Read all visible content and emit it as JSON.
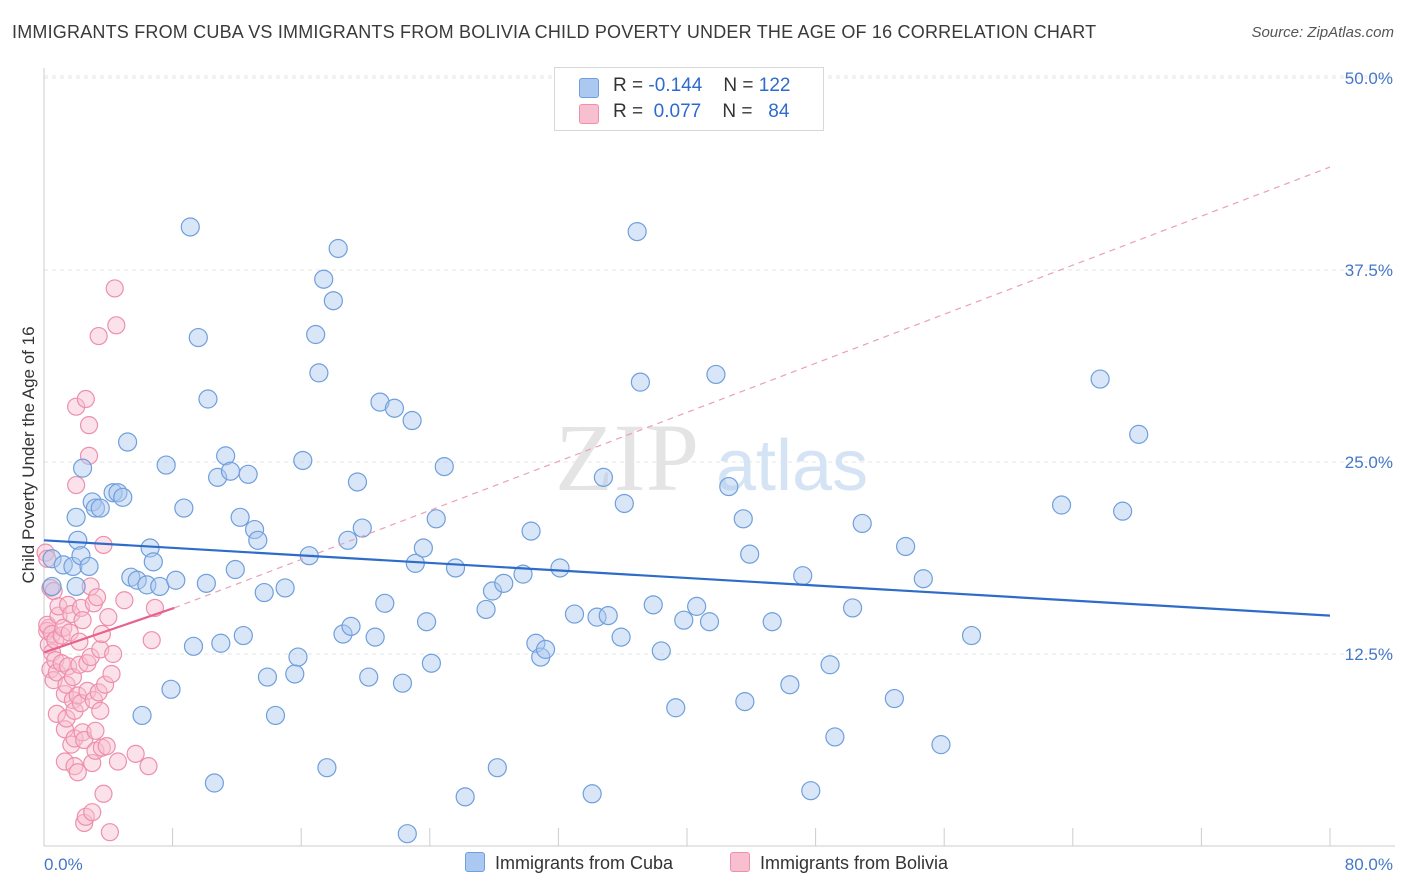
{
  "title": "IMMIGRANTS FROM CUBA VS IMMIGRANTS FROM BOLIVIA CHILD POVERTY UNDER THE AGE OF 16 CORRELATION CHART",
  "source": "Source: ZipAtlas.com",
  "watermark": {
    "zip": "ZIP",
    "atlas": "atlas"
  },
  "legend": {
    "cuba": {
      "r_label": "R =",
      "r_value": "-0.144",
      "n_label": "N =",
      "n_value": "122"
    },
    "bolivia": {
      "r_label": "R =",
      "r_value": "0.077",
      "n_label": "N =",
      "n_value": "84"
    }
  },
  "bottom_legend": {
    "cuba": "Immigrants from Cuba",
    "bolivia": "Immigrants from Bolivia"
  },
  "colors": {
    "cuba_fill": "#aac8f0",
    "cuba_stroke": "#6f9fdc",
    "cuba_line": "#2d6cc8",
    "bolivia_fill": "#f7bfd0",
    "bolivia_stroke": "#ee8fac",
    "bolivia_line": "#e8628c",
    "tick": "#4477c6"
  },
  "chart_data": {
    "type": "scatter",
    "title": "IMMIGRANTS FROM CUBA VS IMMIGRANTS FROM BOLIVIA CHILD POVERTY UNDER THE AGE OF 16 CORRELATION CHART",
    "xlabel": "",
    "ylabel": "Child Poverty Under the Age of 16",
    "xlim": [
      0,
      80
    ],
    "ylim": [
      0,
      50
    ],
    "x_tick_labels": [
      "0.0%",
      "80.0%"
    ],
    "y_ticks": [
      12.5,
      25.0,
      37.5,
      50.0
    ],
    "y_tick_labels": [
      "12.5%",
      "25.0%",
      "37.5%",
      "50.0%"
    ],
    "grid": true,
    "legend_position": "top-center",
    "series": [
      {
        "name": "Immigrants from Cuba",
        "r": -0.144,
        "n": 122,
        "trend": {
          "x": [
            0,
            80
          ],
          "y": [
            19.9,
            15.0
          ]
        },
        "points": [
          [
            0.5,
            18.7
          ],
          [
            0.5,
            16.9
          ],
          [
            1.2,
            18.3
          ],
          [
            1.8,
            18.2
          ],
          [
            2.1,
            19.9
          ],
          [
            2.0,
            16.9
          ],
          [
            2.3,
            18.9
          ],
          [
            2.0,
            21.4
          ],
          [
            2.4,
            24.6
          ],
          [
            2.8,
            18.2
          ],
          [
            3.0,
            22.4
          ],
          [
            3.2,
            22.0
          ],
          [
            3.5,
            22.0
          ],
          [
            4.3,
            23.0
          ],
          [
            4.6,
            23.0
          ],
          [
            4.9,
            22.7
          ],
          [
            5.2,
            26.3
          ],
          [
            5.4,
            17.5
          ],
          [
            5.8,
            17.3
          ],
          [
            6.1,
            8.5
          ],
          [
            6.4,
            17.0
          ],
          [
            6.6,
            19.4
          ],
          [
            6.8,
            18.5
          ],
          [
            7.2,
            16.9
          ],
          [
            7.6,
            24.8
          ],
          [
            7.9,
            10.2
          ],
          [
            8.2,
            17.3
          ],
          [
            8.7,
            22.0
          ],
          [
            9.1,
            40.3
          ],
          [
            9.3,
            13.0
          ],
          [
            9.6,
            33.1
          ],
          [
            10.1,
            17.1
          ],
          [
            10.2,
            29.1
          ],
          [
            10.6,
            4.1
          ],
          [
            10.8,
            24.0
          ],
          [
            11.0,
            13.2
          ],
          [
            11.3,
            25.4
          ],
          [
            11.6,
            24.4
          ],
          [
            11.9,
            18.0
          ],
          [
            12.2,
            21.4
          ],
          [
            12.4,
            13.7
          ],
          [
            12.7,
            24.2
          ],
          [
            13.1,
            20.6
          ],
          [
            13.3,
            19.9
          ],
          [
            13.7,
            16.5
          ],
          [
            13.9,
            11.0
          ],
          [
            14.4,
            8.5
          ],
          [
            15.0,
            16.8
          ],
          [
            15.6,
            11.2
          ],
          [
            15.8,
            12.3
          ],
          [
            16.1,
            25.1
          ],
          [
            16.5,
            18.9
          ],
          [
            16.9,
            33.3
          ],
          [
            17.1,
            30.8
          ],
          [
            17.4,
            36.9
          ],
          [
            17.6,
            5.1
          ],
          [
            18.0,
            35.5
          ],
          [
            18.3,
            38.9
          ],
          [
            18.6,
            13.8
          ],
          [
            18.9,
            19.9
          ],
          [
            19.1,
            14.3
          ],
          [
            19.5,
            23.7
          ],
          [
            19.8,
            20.7
          ],
          [
            20.2,
            11.0
          ],
          [
            20.6,
            13.6
          ],
          [
            20.9,
            28.9
          ],
          [
            21.2,
            15.8
          ],
          [
            21.8,
            28.5
          ],
          [
            22.3,
            10.6
          ],
          [
            22.6,
            0.8
          ],
          [
            22.9,
            27.7
          ],
          [
            23.1,
            18.4
          ],
          [
            23.6,
            19.4
          ],
          [
            23.8,
            14.6
          ],
          [
            24.1,
            11.9
          ],
          [
            24.4,
            21.3
          ],
          [
            24.9,
            24.7
          ],
          [
            25.6,
            18.1
          ],
          [
            26.2,
            3.2
          ],
          [
            27.5,
            15.4
          ],
          [
            27.9,
            16.6
          ],
          [
            28.2,
            5.1
          ],
          [
            28.6,
            17.1
          ],
          [
            29.8,
            17.7
          ],
          [
            30.3,
            20.5
          ],
          [
            30.6,
            13.2
          ],
          [
            30.9,
            12.3
          ],
          [
            31.2,
            12.8
          ],
          [
            32.1,
            18.1
          ],
          [
            33.0,
            15.1
          ],
          [
            34.1,
            3.4
          ],
          [
            34.4,
            14.9
          ],
          [
            34.8,
            24.0
          ],
          [
            35.1,
            15.0
          ],
          [
            35.9,
            13.6
          ],
          [
            36.1,
            22.3
          ],
          [
            36.9,
            40.0
          ],
          [
            37.1,
            30.2
          ],
          [
            37.9,
            15.7
          ],
          [
            38.4,
            12.7
          ],
          [
            39.3,
            9.0
          ],
          [
            39.8,
            14.7
          ],
          [
            40.6,
            15.6
          ],
          [
            41.4,
            14.6
          ],
          [
            41.8,
            30.7
          ],
          [
            42.6,
            23.4
          ],
          [
            43.5,
            21.3
          ],
          [
            43.6,
            9.4
          ],
          [
            43.9,
            19.0
          ],
          [
            45.3,
            14.6
          ],
          [
            46.4,
            10.5
          ],
          [
            47.2,
            17.6
          ],
          [
            47.7,
            3.6
          ],
          [
            48.9,
            11.8
          ],
          [
            49.2,
            7.1
          ],
          [
            50.3,
            15.5
          ],
          [
            50.9,
            21.0
          ],
          [
            52.9,
            9.6
          ],
          [
            53.6,
            19.5
          ],
          [
            54.7,
            17.4
          ],
          [
            55.8,
            6.6
          ],
          [
            57.7,
            13.7
          ],
          [
            63.3,
            22.2
          ],
          [
            65.7,
            30.4
          ],
          [
            67.1,
            21.8
          ],
          [
            68.1,
            26.8
          ]
        ]
      },
      {
        "name": "Immigrants from Bolivia",
        "r": 0.077,
        "n": 84,
        "trend": {
          "x": [
            0,
            8.1
          ],
          "y": [
            12.6,
            15.5
          ],
          "dashed_extension": {
            "x": [
              8.1,
              80
            ],
            "y": [
              15.5,
              44.2
            ]
          }
        },
        "points": [
          [
            0.1,
            19.1
          ],
          [
            0.2,
            18.7
          ],
          [
            0.3,
            14.2
          ],
          [
            0.2,
            14.0
          ],
          [
            0.4,
            16.8
          ],
          [
            0.2,
            14.4
          ],
          [
            0.3,
            13.1
          ],
          [
            0.5,
            12.6
          ],
          [
            0.4,
            11.5
          ],
          [
            0.6,
            16.6
          ],
          [
            0.6,
            10.8
          ],
          [
            0.5,
            13.8
          ],
          [
            0.7,
            13.4
          ],
          [
            0.7,
            12.1
          ],
          [
            0.9,
            15.0
          ],
          [
            0.8,
            8.6
          ],
          [
            0.8,
            11.3
          ],
          [
            0.9,
            15.6
          ],
          [
            1.1,
            13.7
          ],
          [
            1.1,
            11.9
          ],
          [
            1.2,
            14.2
          ],
          [
            1.3,
            9.9
          ],
          [
            1.3,
            7.6
          ],
          [
            1.4,
            10.5
          ],
          [
            1.4,
            8.3
          ],
          [
            1.3,
            5.5
          ],
          [
            1.5,
            11.7
          ],
          [
            1.5,
            15.7
          ],
          [
            1.6,
            13.9
          ],
          [
            1.7,
            6.6
          ],
          [
            1.7,
            15.1
          ],
          [
            1.8,
            9.5
          ],
          [
            1.8,
            11.0
          ],
          [
            1.9,
            7.0
          ],
          [
            1.9,
            5.2
          ],
          [
            1.9,
            8.8
          ],
          [
            2.0,
            28.6
          ],
          [
            2.0,
            23.5
          ],
          [
            2.1,
            4.8
          ],
          [
            2.1,
            9.8
          ],
          [
            2.2,
            13.3
          ],
          [
            2.2,
            11.8
          ],
          [
            2.3,
            15.5
          ],
          [
            2.3,
            9.3
          ],
          [
            2.4,
            14.7
          ],
          [
            2.4,
            7.4
          ],
          [
            2.5,
            6.9
          ],
          [
            2.5,
            1.5
          ],
          [
            2.6,
            29.1
          ],
          [
            2.6,
            1.9
          ],
          [
            2.7,
            11.9
          ],
          [
            2.7,
            10.1
          ],
          [
            2.8,
            27.4
          ],
          [
            2.8,
            25.4
          ],
          [
            2.9,
            16.9
          ],
          [
            2.9,
            12.3
          ],
          [
            3.0,
            2.2
          ],
          [
            3.0,
            5.4
          ],
          [
            3.1,
            9.5
          ],
          [
            3.1,
            15.8
          ],
          [
            3.2,
            7.5
          ],
          [
            3.2,
            6.2
          ],
          [
            3.3,
            16.2
          ],
          [
            3.4,
            33.2
          ],
          [
            3.4,
            10.0
          ],
          [
            3.5,
            12.8
          ],
          [
            3.5,
            8.8
          ],
          [
            3.6,
            13.8
          ],
          [
            3.6,
            6.4
          ],
          [
            3.7,
            19.6
          ],
          [
            3.7,
            3.4
          ],
          [
            3.8,
            10.5
          ],
          [
            3.9,
            6.5
          ],
          [
            4.0,
            14.9
          ],
          [
            4.1,
            0.9
          ],
          [
            4.2,
            11.2
          ],
          [
            4.3,
            12.5
          ],
          [
            4.4,
            36.3
          ],
          [
            4.5,
            33.9
          ],
          [
            4.6,
            5.5
          ],
          [
            5.0,
            16.0
          ],
          [
            5.7,
            6.0
          ],
          [
            6.5,
            5.2
          ],
          [
            6.7,
            13.4
          ],
          [
            6.9,
            15.5
          ]
        ]
      }
    ]
  }
}
